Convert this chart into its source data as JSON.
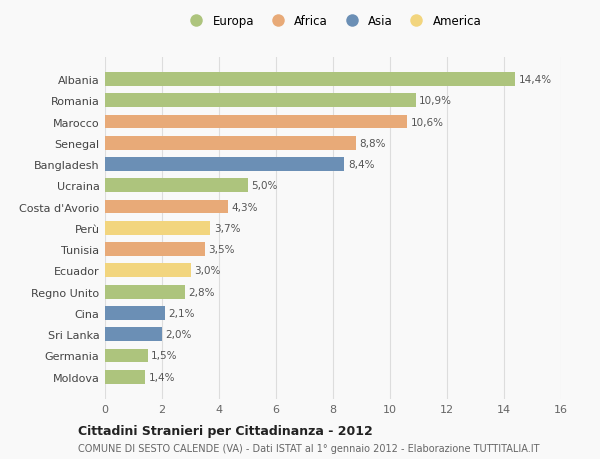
{
  "countries": [
    "Moldova",
    "Germania",
    "Sri Lanka",
    "Cina",
    "Regno Unito",
    "Ecuador",
    "Tunisia",
    "Perù",
    "Costa d'Avorio",
    "Ucraina",
    "Bangladesh",
    "Senegal",
    "Marocco",
    "Romania",
    "Albania"
  ],
  "values": [
    1.4,
    1.5,
    2.0,
    2.1,
    2.8,
    3.0,
    3.5,
    3.7,
    4.3,
    5.0,
    8.4,
    8.8,
    10.6,
    10.9,
    14.4
  ],
  "labels": [
    "1,4%",
    "1,5%",
    "2,0%",
    "2,1%",
    "2,8%",
    "3,0%",
    "3,5%",
    "3,7%",
    "4,3%",
    "5,0%",
    "8,4%",
    "8,8%",
    "10,6%",
    "10,9%",
    "14,4%"
  ],
  "categories": [
    "Europa",
    "Europa",
    "Asia",
    "Asia",
    "Europa",
    "America",
    "Africa",
    "America",
    "Africa",
    "Europa",
    "Asia",
    "Africa",
    "Africa",
    "Europa",
    "Europa"
  ],
  "colors": {
    "Europa": "#adc47d",
    "Africa": "#e8aa78",
    "Asia": "#6b8fb5",
    "America": "#f2d57e"
  },
  "legend_order": [
    "Europa",
    "Africa",
    "Asia",
    "America"
  ],
  "title1": "Cittadini Stranieri per Cittadinanza - 2012",
  "title2": "COMUNE DI SESTO CALENDE (VA) - Dati ISTAT al 1° gennaio 2012 - Elaborazione TUTTITALIA.IT",
  "xlim": [
    0,
    16
  ],
  "xticks": [
    0,
    2,
    4,
    6,
    8,
    10,
    12,
    14,
    16
  ],
  "bg_color": "#f9f9f9",
  "grid_color": "#dddddd"
}
